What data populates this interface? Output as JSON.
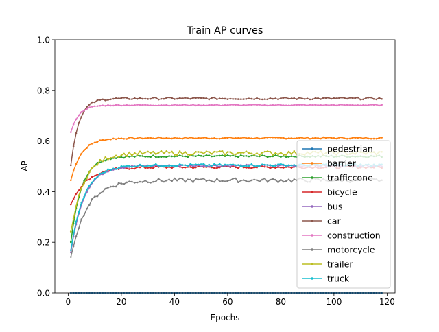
{
  "chart_data": {
    "type": "line",
    "title": "Train AP curves",
    "xlabel": "Epochs",
    "ylabel": "AP",
    "xlim": [
      -5,
      123
    ],
    "ylim": [
      0.0,
      1.0
    ],
    "xticks": [
      "0",
      "20",
      "40",
      "60",
      "80",
      "100",
      "120"
    ],
    "yticks": [
      "0.0",
      "0.2",
      "0.4",
      "0.6",
      "0.8",
      "1.0"
    ],
    "grid": false,
    "legend_position": "lower right",
    "x_start": 1,
    "x_end": 118,
    "series": [
      {
        "name": "pedestrian",
        "color": "#1f77b4",
        "start": 0.0,
        "plateau": 0.0,
        "rise": 1,
        "amp": 0.0
      },
      {
        "name": "barrier",
        "color": "#ff7f0e",
        "start": 0.445,
        "plateau": 0.612,
        "rise": 4,
        "amp": 0.003
      },
      {
        "name": "trafficcone",
        "color": "#2ca02c",
        "start": 0.2,
        "plateau": 0.54,
        "rise": 4,
        "amp": 0.004
      },
      {
        "name": "bicycle",
        "color": "#d62728",
        "start": 0.35,
        "plateau": 0.497,
        "rise": 6,
        "amp": 0.005
      },
      {
        "name": "bus",
        "color": "#9467bd",
        "start": 0.16,
        "plateau": 0.503,
        "rise": 5,
        "amp": 0.004
      },
      {
        "name": "car",
        "color": "#8c564b",
        "start": 0.505,
        "plateau": 0.768,
        "rise": 3,
        "amp": 0.004
      },
      {
        "name": "construction",
        "color": "#e377c2",
        "start": 0.635,
        "plateau": 0.742,
        "rise": 3,
        "amp": 0.002
      },
      {
        "name": "motorcycle",
        "color": "#7f7f7f",
        "start": 0.14,
        "plateau": 0.445,
        "rise": 6,
        "amp": 0.008
      },
      {
        "name": "trailer",
        "color": "#bcbd22",
        "start": 0.24,
        "plateau": 0.553,
        "rise": 5,
        "amp": 0.008
      },
      {
        "name": "truck",
        "color": "#17becf",
        "start": 0.17,
        "plateau": 0.505,
        "rise": 5,
        "amp": 0.005
      }
    ]
  }
}
